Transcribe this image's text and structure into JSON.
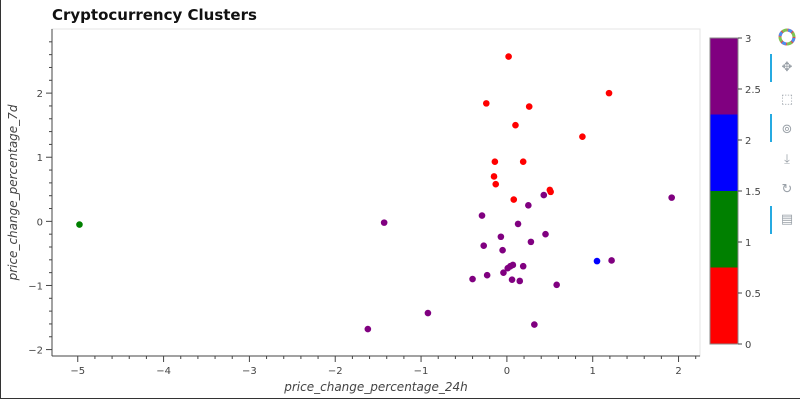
{
  "title": "Cryptocurrency Clusters",
  "toolbar": {
    "tools": [
      "logo-icon",
      "pan-icon",
      "box-zoom-icon",
      "wheel-zoom-icon",
      "save-icon",
      "reset-icon",
      "hover-icon"
    ]
  },
  "colors": {
    "cluster0": "#ff0000",
    "cluster1": "#008000",
    "cluster2": "#0000ff",
    "cluster3": "#800080"
  },
  "chart_data": {
    "type": "scatter",
    "title": "Cryptocurrency Clusters",
    "xlabel": "price_change_percentage_24h",
    "ylabel": "price_change_percentage_7d",
    "xlim": [
      -5.3,
      2.25
    ],
    "ylim": [
      -2.1,
      3.0
    ],
    "x_ticks": [
      -5,
      -4,
      -3,
      -2,
      -1,
      0,
      1,
      2
    ],
    "x_tick_labels": [
      "−5",
      "−4",
      "−3",
      "−2",
      "−1",
      "0",
      "1",
      "2"
    ],
    "y_ticks": [
      -2,
      -1,
      0,
      1,
      2
    ],
    "y_tick_labels": [
      "−2",
      "−1",
      "0",
      "1",
      "2"
    ],
    "colorbar": {
      "range": [
        0,
        3
      ],
      "ticks": [
        0,
        0.5,
        1,
        1.5,
        2,
        2.5,
        3
      ],
      "tick_labels": [
        "0",
        "0.5",
        "1",
        "1.5",
        "2",
        "2.5",
        "3"
      ],
      "palette": [
        "#ff0000",
        "#008000",
        "#0000ff",
        "#800080"
      ]
    },
    "series": [
      {
        "cluster": 0,
        "points": [
          [
            0.02,
            2.57
          ],
          [
            -0.24,
            1.84
          ],
          [
            0.26,
            1.79
          ],
          [
            1.19,
            2.0
          ],
          [
            0.1,
            1.5
          ],
          [
            0.88,
            1.32
          ],
          [
            -0.14,
            0.93
          ],
          [
            0.19,
            0.93
          ],
          [
            -0.15,
            0.7
          ],
          [
            -0.13,
            0.58
          ],
          [
            0.5,
            0.49
          ],
          [
            0.51,
            0.46
          ],
          [
            0.08,
            0.34
          ]
        ]
      },
      {
        "cluster": 1,
        "points": [
          [
            -4.98,
            -0.05
          ]
        ]
      },
      {
        "cluster": 2,
        "points": [
          [
            1.05,
            -0.62
          ]
        ]
      },
      {
        "cluster": 3,
        "points": [
          [
            1.92,
            0.37
          ],
          [
            0.43,
            0.41
          ],
          [
            0.25,
            0.25
          ],
          [
            -1.43,
            -0.02
          ],
          [
            -0.29,
            0.09
          ],
          [
            0.13,
            -0.04
          ],
          [
            -0.07,
            -0.24
          ],
          [
            0.45,
            -0.2
          ],
          [
            -0.27,
            -0.38
          ],
          [
            0.28,
            -0.32
          ],
          [
            -0.05,
            -0.45
          ],
          [
            1.22,
            -0.61
          ],
          [
            0.04,
            -0.7
          ],
          [
            0.07,
            -0.68
          ],
          [
            0.19,
            -0.7
          ],
          [
            0.01,
            -0.73
          ],
          [
            -0.04,
            -0.8
          ],
          [
            -0.23,
            -0.84
          ],
          [
            -0.4,
            -0.9
          ],
          [
            0.06,
            -0.91
          ],
          [
            0.15,
            -0.93
          ],
          [
            0.58,
            -0.99
          ],
          [
            -0.92,
            -1.43
          ],
          [
            0.32,
            -1.61
          ],
          [
            -1.62,
            -1.68
          ]
        ]
      }
    ]
  }
}
